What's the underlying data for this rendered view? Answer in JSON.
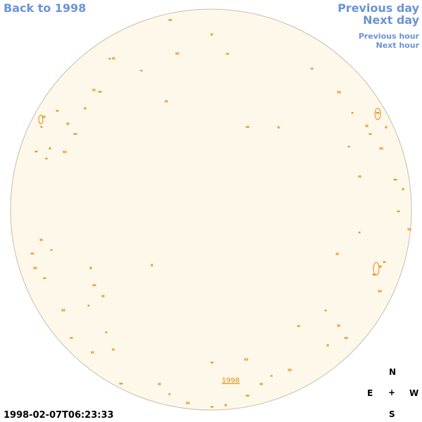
{
  "nav": {
    "back_year": "Back to 1998",
    "previous_day": "Previous day",
    "next_day": "Next day",
    "previous_hour": "Previous hour",
    "next_hour": "Next hour"
  },
  "disk_label": "1998",
  "compass": {
    "north": "N",
    "east": "E",
    "center": "+",
    "west": "W",
    "south": "S"
  },
  "timestamp": "1998-02-07T06:23:33"
}
